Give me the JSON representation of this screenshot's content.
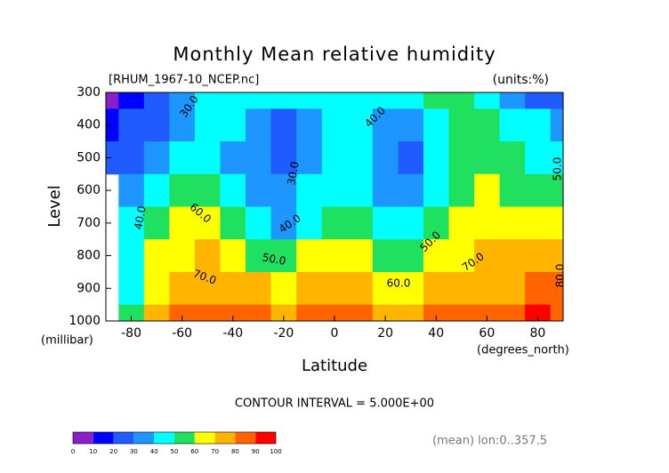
{
  "chart_data": {
    "type": "contour",
    "title": "Monthly Mean relative humidity",
    "subtitle": "[RHUM_1967-10_NCEP.nc]",
    "units": "(units:%)",
    "y_label": "Level",
    "y_unit": "(millibar)",
    "x_label": "Latitude",
    "x_unit": "(degrees_north)",
    "contour_interval": "CONTOUR INTERVAL = 5.000E+00",
    "footnote": "(mean) lon:0..357.5",
    "x": [
      -90,
      -80,
      -70,
      -60,
      -50,
      -40,
      -30,
      -20,
      -10,
      0,
      10,
      20,
      30,
      40,
      50,
      60,
      70,
      80,
      90
    ],
    "y": [
      300,
      400,
      500,
      600,
      700,
      800,
      900,
      1000
    ],
    "values": [
      [
        5,
        15,
        25,
        35,
        40,
        42,
        45,
        45,
        45,
        45,
        48,
        45,
        48,
        55,
        58,
        45,
        35,
        28,
        25
      ],
      [
        15,
        20,
        28,
        38,
        45,
        40,
        35,
        28,
        35,
        45,
        42,
        35,
        30,
        45,
        55,
        55,
        45,
        40,
        35
      ],
      [
        20,
        25,
        32,
        42,
        48,
        38,
        30,
        25,
        35,
        45,
        40,
        30,
        28,
        42,
        55,
        55,
        50,
        45,
        48
      ],
      [
        null,
        35,
        45,
        55,
        52,
        40,
        33,
        30,
        40,
        48,
        43,
        35,
        38,
        48,
        58,
        62,
        58,
        52,
        55
      ],
      [
        null,
        42,
        55,
        62,
        60,
        50,
        40,
        38,
        48,
        58,
        52,
        42,
        48,
        55,
        62,
        68,
        65,
        62,
        65
      ],
      [
        null,
        40,
        62,
        68,
        70,
        65,
        55,
        52,
        62,
        68,
        62,
        55,
        58,
        62,
        68,
        72,
        75,
        72,
        78
      ],
      [
        null,
        45,
        68,
        78,
        78,
        75,
        70,
        68,
        72,
        76,
        72,
        68,
        68,
        70,
        73,
        75,
        78,
        80,
        82
      ],
      [
        null,
        55,
        75,
        85,
        85,
        82,
        80,
        78,
        80,
        82,
        80,
        78,
        78,
        80,
        82,
        88,
        88,
        92,
        85
      ]
    ],
    "xlim": [
      -90,
      90
    ],
    "ylim": [
      300,
      1000
    ],
    "y_reversed": true,
    "xticks": [
      -80,
      -60,
      -40,
      -20,
      0,
      20,
      40,
      60,
      80
    ],
    "yticks": [
      300,
      400,
      500,
      600,
      700,
      800,
      900,
      1000
    ],
    "levels": [
      0,
      10,
      20,
      30,
      40,
      50,
      60,
      70,
      80,
      90,
      100
    ],
    "colors": [
      "#8a1ec8",
      "#0000ff",
      "#1f5bff",
      "#1e96ff",
      "#00ffff",
      "#20e060",
      "#ffff00",
      "#ffb400",
      "#ff6400",
      "#ff0000"
    ],
    "contour_labels": [
      "30.0",
      "40.0",
      "30.0",
      "50.0",
      "40.0",
      "60.0",
      "40.0",
      "50.0",
      "50.0",
      "70.0",
      "60.0",
      "70.0",
      "80.0"
    ]
  }
}
